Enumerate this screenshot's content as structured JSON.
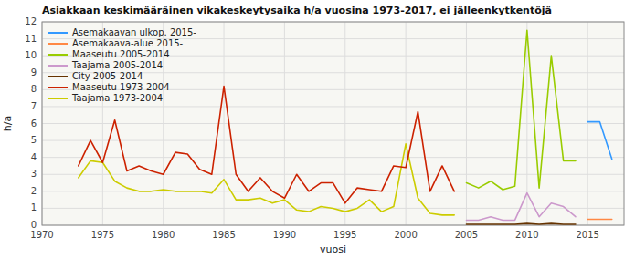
{
  "chart_data": {
    "type": "line",
    "title": "Asiakkaan keskimääräinen vikakeskeytysaika h/a vuosina 1973-2017, ei jälleenkytkentöjä",
    "x_label": "vuosi",
    "y_label": "h/a",
    "xlim": [
      1970,
      2018
    ],
    "ylim": [
      0,
      12
    ],
    "xticks": [
      1970,
      1975,
      1980,
      1985,
      1990,
      1995,
      2000,
      2005,
      2010,
      2015
    ],
    "yticks": [
      0,
      1,
      2,
      3,
      4,
      5,
      6,
      7,
      8,
      9,
      10,
      11,
      12
    ],
    "grid": true,
    "legend": "upper left",
    "series": [
      {
        "name": "Asemakaavan ulkop. 2015-",
        "color": "#3399ff",
        "x": [
          2015,
          2016,
          2017
        ],
        "values": [
          6.1,
          6.1,
          3.9
        ]
      },
      {
        "name": "Asemakaava-alue 2015-",
        "color": "#ff8844",
        "x": [
          2015,
          2016,
          2017
        ],
        "values": [
          0.35,
          0.35,
          0.35
        ]
      },
      {
        "name": "Maaseutu 2005-2014",
        "color": "#99cc00",
        "x": [
          2005,
          2006,
          2007,
          2008,
          2009,
          2010,
          2011,
          2012,
          2013,
          2014
        ],
        "values": [
          2.5,
          2.2,
          2.6,
          2.1,
          2.3,
          11.5,
          2.2,
          10.0,
          3.8,
          3.8
        ]
      },
      {
        "name": "Taajama 2005-2014",
        "color": "#cc99cc",
        "x": [
          2005,
          2006,
          2007,
          2008,
          2009,
          2010,
          2011,
          2012,
          2013,
          2014
        ],
        "values": [
          0.3,
          0.3,
          0.5,
          0.3,
          0.3,
          1.9,
          0.5,
          1.3,
          1.1,
          0.5
        ]
      },
      {
        "name": "City 2005-2014",
        "color": "#663300",
        "x": [
          2005,
          2006,
          2007,
          2008,
          2009,
          2010,
          2011,
          2012,
          2013,
          2014
        ],
        "values": [
          0.05,
          0.05,
          0.05,
          0.05,
          0.05,
          0.1,
          0.05,
          0.1,
          0.05,
          0.05
        ]
      },
      {
        "name": "Maaseutu 1973-2004",
        "color": "#cc2200",
        "x": [
          1973,
          1974,
          1975,
          1976,
          1977,
          1978,
          1979,
          1980,
          1981,
          1982,
          1983,
          1984,
          1985,
          1986,
          1987,
          1988,
          1989,
          1990,
          1991,
          1992,
          1993,
          1994,
          1995,
          1996,
          1997,
          1998,
          1999,
          2000,
          2001,
          2002,
          2003,
          2004
        ],
        "values": [
          3.5,
          5.0,
          3.7,
          6.2,
          3.2,
          3.5,
          3.2,
          3.0,
          4.3,
          4.2,
          3.3,
          3.0,
          8.2,
          3.0,
          2.0,
          2.8,
          2.0,
          1.6,
          3.0,
          2.0,
          2.5,
          2.5,
          1.3,
          2.2,
          2.1,
          2.0,
          3.5,
          3.4,
          6.7,
          2.0,
          3.5,
          2.0
        ]
      },
      {
        "name": "Taajama 1973-2004",
        "color": "#cccc00",
        "x": [
          1973,
          1974,
          1975,
          1976,
          1977,
          1978,
          1979,
          1980,
          1981,
          1982,
          1983,
          1984,
          1985,
          1986,
          1987,
          1988,
          1989,
          1990,
          1991,
          1992,
          1993,
          1994,
          1995,
          1996,
          1997,
          1998,
          1999,
          2000,
          2001,
          2002,
          2003,
          2004
        ],
        "values": [
          2.8,
          3.8,
          3.7,
          2.6,
          2.2,
          2.0,
          2.0,
          2.1,
          2.0,
          2.0,
          2.0,
          1.9,
          2.7,
          1.5,
          1.5,
          1.6,
          1.3,
          1.5,
          0.9,
          0.8,
          1.1,
          1.0,
          0.8,
          1.0,
          1.5,
          0.8,
          1.1,
          4.8,
          1.6,
          0.7,
          0.6,
          0.6
        ]
      }
    ]
  }
}
